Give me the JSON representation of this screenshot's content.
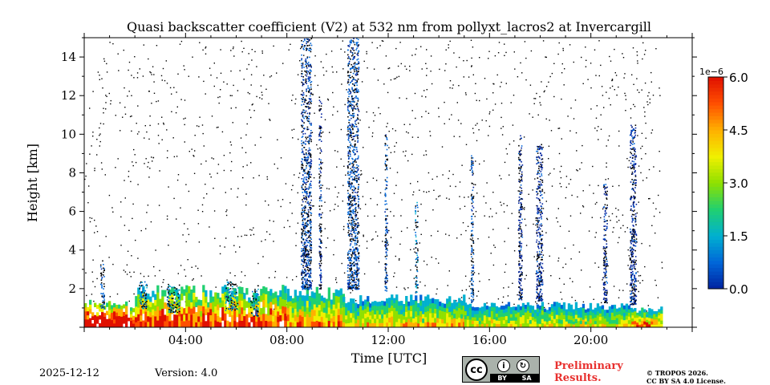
{
  "chart_data": {
    "type": "heatmap",
    "title": "Quasi backscatter coefficient (V2) at 532 nm from pollyxt_lacros2 at Invercargill",
    "xlabel": "Time [UTC]",
    "ylabel": "Height [km]",
    "xlim_hours": [
      0,
      24
    ],
    "ylim_km": [
      0,
      15
    ],
    "x_ticks": [
      {
        "value": 4,
        "label": "04:00"
      },
      {
        "value": 8,
        "label": "08:00"
      },
      {
        "value": 12,
        "label": "12:00"
      },
      {
        "value": 16,
        "label": "16:00"
      },
      {
        "value": 20,
        "label": "20:00"
      }
    ],
    "y_ticks": [
      {
        "value": 2,
        "label": "2"
      },
      {
        "value": 4,
        "label": "4"
      },
      {
        "value": 6,
        "label": "6"
      },
      {
        "value": 8,
        "label": "8"
      },
      {
        "value": 10,
        "label": "10"
      },
      {
        "value": 12,
        "label": "12"
      },
      {
        "value": 14,
        "label": "14"
      }
    ],
    "colorbar": {
      "exponent_label": "1e−6",
      "range": [
        0,
        6
      ],
      "ticks": [
        {
          "value": 0,
          "label": "0.0"
        },
        {
          "value": 1.5,
          "label": "1.5"
        },
        {
          "value": 3,
          "label": "3.0"
        },
        {
          "value": 4.5,
          "label": "4.5"
        },
        {
          "value": 6,
          "label": "6.0"
        }
      ],
      "colormap": [
        "#0022a0",
        "#0066d8",
        "#00b0d0",
        "#20d070",
        "#8ee000",
        "#f0f000",
        "#ffb000",
        "#ff5000",
        "#e01000"
      ]
    },
    "data_end_hour": 22.8,
    "boundary_layer": [
      {
        "t0": 0.0,
        "t1": 2.0,
        "top_km": 1.3,
        "value": 5.4
      },
      {
        "t0": 2.0,
        "t1": 8.0,
        "top_km": 2.0,
        "value": 4.2
      },
      {
        "t0": 8.0,
        "t1": 10.2,
        "top_km": 1.9,
        "value": 3.3
      },
      {
        "t0": 10.2,
        "t1": 15.0,
        "top_km": 1.6,
        "value": 2.8
      },
      {
        "t0": 15.0,
        "t1": 21.6,
        "top_km": 1.2,
        "value": 2.5
      },
      {
        "t0": 21.6,
        "t1": 22.8,
        "top_km": 1.0,
        "value": 3.4
      }
    ],
    "cloud_columns": [
      {
        "t": 0.7,
        "bottom_km": 1.0,
        "top_km": 3.5,
        "width_h": 0.15,
        "value": 0.6
      },
      {
        "t": 2.3,
        "bottom_km": 1.0,
        "top_km": 2.4,
        "width_h": 0.3,
        "value": 1.1
      },
      {
        "t": 3.5,
        "bottom_km": 0.8,
        "top_km": 2.3,
        "width_h": 0.5,
        "value": 1.4
      },
      {
        "t": 5.8,
        "bottom_km": 0.9,
        "top_km": 2.4,
        "width_h": 0.5,
        "value": 1.3
      },
      {
        "t": 6.7,
        "bottom_km": 0.6,
        "top_km": 2.0,
        "width_h": 0.3,
        "value": 1.0
      },
      {
        "t": 8.75,
        "bottom_km": 2.0,
        "top_km": 15.0,
        "width_h": 0.4,
        "value": 0.4
      },
      {
        "t": 9.3,
        "bottom_km": 2.0,
        "top_km": 12.0,
        "width_h": 0.1,
        "value": 0.3
      },
      {
        "t": 10.6,
        "bottom_km": 2.0,
        "top_km": 15.0,
        "width_h": 0.45,
        "value": 0.5
      },
      {
        "t": 11.9,
        "bottom_km": 1.9,
        "top_km": 10.0,
        "width_h": 0.1,
        "value": 0.5
      },
      {
        "t": 13.1,
        "bottom_km": 1.8,
        "top_km": 6.5,
        "width_h": 0.1,
        "value": 1.2
      },
      {
        "t": 15.3,
        "bottom_km": 1.3,
        "top_km": 9.0,
        "width_h": 0.1,
        "value": 0.6
      },
      {
        "t": 17.2,
        "bottom_km": 1.4,
        "top_km": 10.0,
        "width_h": 0.15,
        "value": 0.3
      },
      {
        "t": 17.95,
        "bottom_km": 1.4,
        "top_km": 9.5,
        "width_h": 0.25,
        "value": 0.3
      },
      {
        "t": 20.55,
        "bottom_km": 1.3,
        "top_km": 7.5,
        "width_h": 0.15,
        "value": 0.3
      },
      {
        "t": 21.65,
        "bottom_km": 1.2,
        "top_km": 10.5,
        "width_h": 0.25,
        "value": 0.3
      }
    ]
  },
  "footer": {
    "date": "2025-12-12",
    "version": "Version: 4.0",
    "license_cc": "cc",
    "license_by": "BY",
    "license_sa": "SA",
    "preliminary_line1": "Preliminary",
    "preliminary_line2": "Results.",
    "copyright_line1": "© TROPOS 2026.",
    "copyright_line2": "CC BY SA 4.0 License."
  }
}
